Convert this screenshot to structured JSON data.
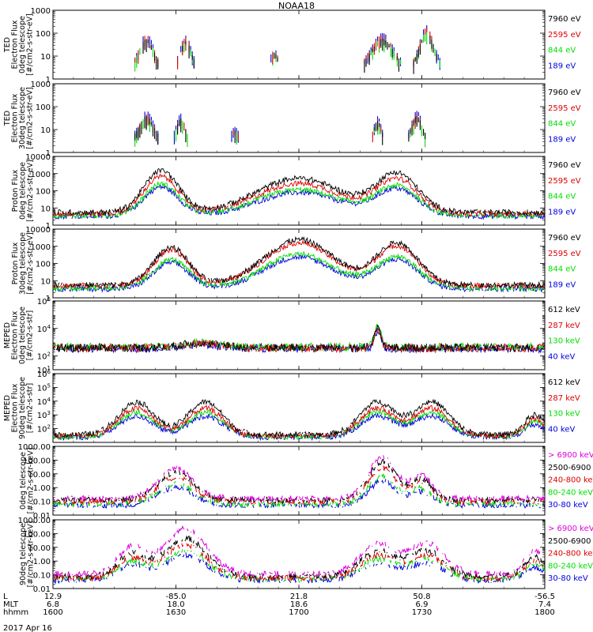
{
  "title": "NOAA18",
  "date": "2017 Apr 16",
  "footer": {
    "rows": [
      {
        "label": "L",
        "values": [
          "12.9",
          "-85.0",
          "21.8",
          "50.8",
          "-56.5"
        ]
      },
      {
        "label": "MLT",
        "values": [
          "6.8",
          "18.0",
          "18.6",
          "6.9",
          "7.4"
        ]
      },
      {
        "label": "hhmm",
        "values": [
          "1600",
          "1630",
          "1700",
          "1730",
          "1800"
        ]
      }
    ]
  },
  "colors": {
    "black": "#000000",
    "red": "#dd0000",
    "green": "#00dd00",
    "blue": "#0000dd",
    "magenta": "#dd00dd"
  },
  "chart_data": [
    {
      "type": "line",
      "scale": "log",
      "ylim": [
        1,
        1000
      ],
      "ylabel": [
        "TED",
        "Electron Flux",
        "0deg telescope",
        "[#/cm2-s-str-eV]"
      ],
      "ticks": [
        {
          "v": 1,
          "t": "1"
        },
        {
          "v": 10,
          "t": "10"
        },
        {
          "v": 100,
          "t": "100"
        },
        {
          "v": 1000,
          "t": "1000"
        }
      ],
      "series": [
        {
          "name": "7960 eV",
          "color": "black"
        },
        {
          "name": "2595 eV",
          "color": "red"
        },
        {
          "name": "844 eV",
          "color": "green"
        },
        {
          "name": "189 eV",
          "color": "blue"
        }
      ]
    },
    {
      "type": "line",
      "scale": "log",
      "ylim": [
        1,
        1000
      ],
      "ylabel": [
        "TED",
        "Electron Flux",
        "30deg telescope",
        "[#/cm2-s-str-eV]"
      ],
      "ticks": [
        {
          "v": 1,
          "t": "1"
        },
        {
          "v": 10,
          "t": "10"
        },
        {
          "v": 100,
          "t": "100"
        },
        {
          "v": 1000,
          "t": "1000"
        }
      ],
      "series": [
        {
          "name": "7960 eV",
          "color": "black"
        },
        {
          "name": "2595 eV",
          "color": "red"
        },
        {
          "name": "844 eV",
          "color": "green"
        },
        {
          "name": "189 eV",
          "color": "blue"
        }
      ]
    },
    {
      "type": "line",
      "scale": "log",
      "ylim": [
        1,
        10000
      ],
      "ylabel": [
        "Proton Flux",
        "0deg telescope",
        "[#/cm2-s-str-eV]"
      ],
      "ticks": [
        {
          "v": 1,
          "t": "1"
        },
        {
          "v": 10,
          "t": "10"
        },
        {
          "v": 100,
          "t": "100"
        },
        {
          "v": 1000,
          "t": "1000"
        },
        {
          "v": 10000,
          "t": "10000"
        }
      ],
      "series": [
        {
          "name": "7960 eV",
          "color": "black"
        },
        {
          "name": "2595 eV",
          "color": "red"
        },
        {
          "name": "844 eV",
          "color": "green"
        },
        {
          "name": "189 eV",
          "color": "blue"
        }
      ]
    },
    {
      "type": "line",
      "scale": "log",
      "ylim": [
        1,
        10000
      ],
      "ylabel": [
        "Proton Flux",
        "30deg telescope",
        "[#/cm2-s-str-eV]"
      ],
      "ticks": [
        {
          "v": 1,
          "t": "1"
        },
        {
          "v": 10,
          "t": "10"
        },
        {
          "v": 100,
          "t": "100"
        },
        {
          "v": 1000,
          "t": "1000"
        },
        {
          "v": 10000,
          "t": "10000"
        }
      ],
      "series": [
        {
          "name": "7960 eV",
          "color": "black"
        },
        {
          "name": "2595 eV",
          "color": "red"
        },
        {
          "name": "844 eV",
          "color": "green"
        },
        {
          "name": "189 eV",
          "color": "blue"
        }
      ]
    },
    {
      "type": "line",
      "scale": "log",
      "ylim": [
        10,
        1000000
      ],
      "ylabel": [
        "MEPED",
        "Electron Flux",
        "0deg telescope",
        "[#/cm2-s-str]"
      ],
      "ticks": [
        {
          "v": 10,
          "t": "10",
          "sup": "1"
        },
        {
          "v": 100,
          "t": "10",
          "sup": "2"
        },
        {
          "v": 10000,
          "t": "10",
          "sup": "4"
        },
        {
          "v": 1000000,
          "t": "10",
          "sup": "6"
        }
      ],
      "series": [
        {
          "name": "612 keV",
          "color": "black"
        },
        {
          "name": "287 keV",
          "color": "red"
        },
        {
          "name": "130 keV",
          "color": "green"
        },
        {
          "name": "40 keV",
          "color": "blue"
        }
      ]
    },
    {
      "type": "line",
      "scale": "log",
      "ylim": [
        10,
        1000000
      ],
      "ylabel": [
        "MEPED",
        "Electron Flux",
        "90deg telescope",
        "[#/cm2-s-str]"
      ],
      "ticks": [
        {
          "v": 100,
          "t": "10",
          "sup": "2"
        },
        {
          "v": 1000,
          "t": "10",
          "sup": "3"
        },
        {
          "v": 10000,
          "t": "10",
          "sup": "4"
        },
        {
          "v": 100000,
          "t": "10",
          "sup": "5"
        },
        {
          "v": 1000000,
          "t": "10",
          "sup": "6"
        }
      ],
      "series": [
        {
          "name": "612 keV",
          "color": "black"
        },
        {
          "name": "287 keV",
          "color": "red"
        },
        {
          "name": "130 keV",
          "color": "green"
        },
        {
          "name": "40 keV",
          "color": "blue"
        }
      ]
    },
    {
      "type": "line",
      "scale": "log",
      "ylim": [
        0.01,
        1000
      ],
      "ylabel": [
        "0deg telescope",
        "[#/cm2-s-str-keV]"
      ],
      "ticks": [
        {
          "v": 0.01,
          "t": "0.01"
        },
        {
          "v": 0.1,
          "t": "0.10"
        },
        {
          "v": 1,
          "t": "1.00"
        },
        {
          "v": 10,
          "t": "10.00"
        },
        {
          "v": 100,
          "t": "100.00"
        },
        {
          "v": 1000,
          "t": "1000.00"
        }
      ],
      "series": [
        {
          "name": "> 6900 keV",
          "color": "magenta"
        },
        {
          "name": "2500-6900",
          "color": "black"
        },
        {
          "name": "240-800 keV",
          "color": "red"
        },
        {
          "name": "80-240 keV",
          "color": "green"
        },
        {
          "name": "30-80 keV",
          "color": "blue"
        }
      ]
    },
    {
      "type": "line",
      "scale": "log",
      "ylim": [
        0.01,
        1000
      ],
      "ylabel": [
        "90deg telescope",
        "[#/cm2-s-str-keV]"
      ],
      "ticks": [
        {
          "v": 0.01,
          "t": "0.01"
        },
        {
          "v": 0.1,
          "t": "0.10"
        },
        {
          "v": 1,
          "t": "1.00"
        },
        {
          "v": 10,
          "t": "10.00"
        },
        {
          "v": 100,
          "t": "100.00"
        },
        {
          "v": 1000,
          "t": "1000.00"
        }
      ],
      "series": [
        {
          "name": "> 6900 keV",
          "color": "magenta"
        },
        {
          "name": "2500-6900",
          "color": "black"
        },
        {
          "name": "240-800 keV",
          "color": "red"
        },
        {
          "name": "80-240 keV",
          "color": "green"
        },
        {
          "name": "30-80 keV",
          "color": "blue"
        }
      ]
    }
  ]
}
